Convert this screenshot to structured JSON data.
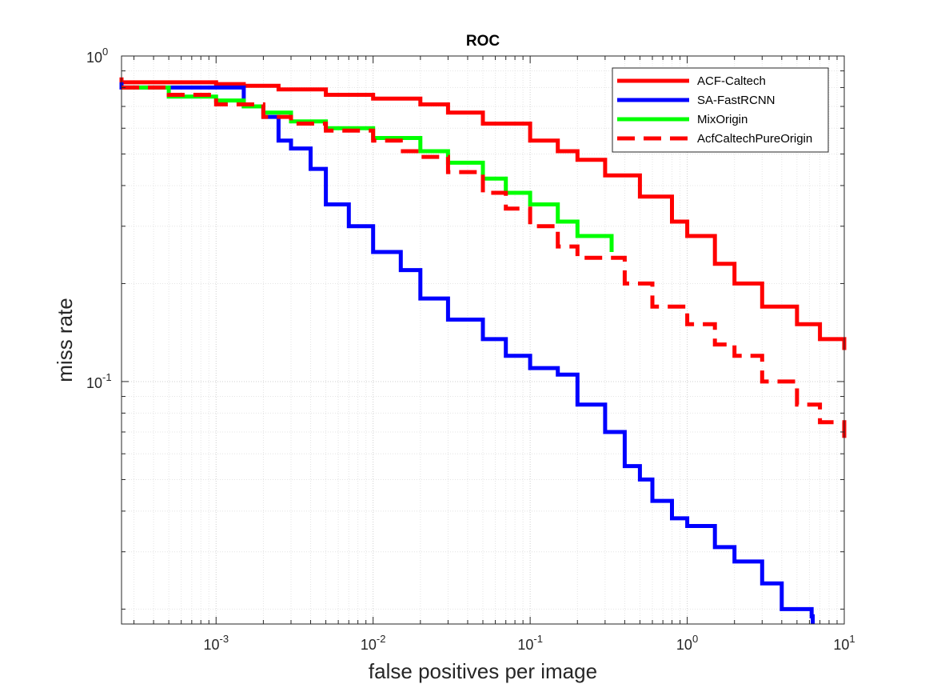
{
  "chart_data": {
    "type": "line",
    "title": "ROC",
    "xlabel": "false positives per image",
    "ylabel": "miss rate",
    "x_scale": "log",
    "y_scale": "log",
    "xlim": [
      0.00025,
      10
    ],
    "ylim": [
      0.018,
      1
    ],
    "x_ticks": [
      {
        "base": "10",
        "exp": "-3",
        "value": 0.001
      },
      {
        "base": "10",
        "exp": "-2",
        "value": 0.01
      },
      {
        "base": "10",
        "exp": "-1",
        "value": 0.1
      },
      {
        "base": "10",
        "exp": "0",
        "value": 1
      },
      {
        "base": "10",
        "exp": "1",
        "value": 10
      }
    ],
    "y_ticks": [
      {
        "base": "10",
        "exp": "-1",
        "value": 0.1
      },
      {
        "base": "10",
        "exp": "0",
        "value": 1
      }
    ],
    "grid": true,
    "minor_grid": true,
    "legend_position": "top-right",
    "series": [
      {
        "name": "ACF-Caltech",
        "color": "#ff0000",
        "dash": "solid",
        "points": [
          [
            0.00025,
            0.86
          ],
          [
            0.00025,
            0.83
          ],
          [
            0.001,
            0.82
          ],
          [
            0.0015,
            0.81
          ],
          [
            0.0025,
            0.79
          ],
          [
            0.005,
            0.76
          ],
          [
            0.01,
            0.74
          ],
          [
            0.02,
            0.71
          ],
          [
            0.03,
            0.67
          ],
          [
            0.05,
            0.62
          ],
          [
            0.1,
            0.55
          ],
          [
            0.15,
            0.51
          ],
          [
            0.2,
            0.48
          ],
          [
            0.3,
            0.43
          ],
          [
            0.5,
            0.37
          ],
          [
            0.8,
            0.31
          ],
          [
            1.0,
            0.28
          ],
          [
            1.5,
            0.23
          ],
          [
            2.0,
            0.2
          ],
          [
            3.0,
            0.17
          ],
          [
            5.0,
            0.15
          ],
          [
            7.0,
            0.135
          ],
          [
            10,
            0.125
          ]
        ]
      },
      {
        "name": "SA-FastRCNN",
        "color": "#0000ff",
        "dash": "solid",
        "points": [
          [
            0.00025,
            0.83
          ],
          [
            0.00025,
            0.8
          ],
          [
            0.0015,
            0.8
          ],
          [
            0.0015,
            0.7
          ],
          [
            0.002,
            0.7
          ],
          [
            0.002,
            0.65
          ],
          [
            0.0025,
            0.65
          ],
          [
            0.0025,
            0.55
          ],
          [
            0.003,
            0.52
          ],
          [
            0.004,
            0.45
          ],
          [
            0.005,
            0.35
          ],
          [
            0.007,
            0.3
          ],
          [
            0.01,
            0.25
          ],
          [
            0.015,
            0.22
          ],
          [
            0.02,
            0.18
          ],
          [
            0.03,
            0.155
          ],
          [
            0.05,
            0.135
          ],
          [
            0.07,
            0.12
          ],
          [
            0.1,
            0.11
          ],
          [
            0.15,
            0.105
          ],
          [
            0.2,
            0.085
          ],
          [
            0.3,
            0.07
          ],
          [
            0.4,
            0.055
          ],
          [
            0.5,
            0.05
          ],
          [
            0.6,
            0.043
          ],
          [
            0.8,
            0.038
          ],
          [
            1.0,
            0.036
          ],
          [
            1.5,
            0.031
          ],
          [
            2.0,
            0.028
          ],
          [
            3.0,
            0.024
          ],
          [
            4.0,
            0.02
          ],
          [
            6.2,
            0.019
          ],
          [
            6.3,
            0.018
          ]
        ]
      },
      {
        "name": "MixOrigin",
        "color": "#00ff00",
        "dash": "solid",
        "points": [
          [
            0.00025,
            0.8
          ],
          [
            0.0005,
            0.8
          ],
          [
            0.0005,
            0.75
          ],
          [
            0.001,
            0.73
          ],
          [
            0.0015,
            0.7
          ],
          [
            0.002,
            0.67
          ],
          [
            0.003,
            0.63
          ],
          [
            0.005,
            0.6
          ],
          [
            0.01,
            0.56
          ],
          [
            0.02,
            0.51
          ],
          [
            0.03,
            0.47
          ],
          [
            0.05,
            0.42
          ],
          [
            0.07,
            0.38
          ],
          [
            0.1,
            0.35
          ],
          [
            0.15,
            0.31
          ],
          [
            0.2,
            0.28
          ],
          [
            0.33,
            0.25
          ]
        ]
      },
      {
        "name": "AcfCaltechPureOrigin",
        "color": "#ff0000",
        "dash": "dashed",
        "points": [
          [
            0.00025,
            0.8
          ],
          [
            0.0005,
            0.76
          ],
          [
            0.001,
            0.71
          ],
          [
            0.002,
            0.65
          ],
          [
            0.003,
            0.62
          ],
          [
            0.005,
            0.59
          ],
          [
            0.01,
            0.55
          ],
          [
            0.015,
            0.51
          ],
          [
            0.02,
            0.49
          ],
          [
            0.03,
            0.44
          ],
          [
            0.05,
            0.38
          ],
          [
            0.07,
            0.34
          ],
          [
            0.1,
            0.3
          ],
          [
            0.15,
            0.26
          ],
          [
            0.2,
            0.24
          ],
          [
            0.4,
            0.2
          ],
          [
            0.6,
            0.17
          ],
          [
            1.0,
            0.15
          ],
          [
            1.5,
            0.13
          ],
          [
            2.0,
            0.12
          ],
          [
            3.0,
            0.1
          ],
          [
            5.0,
            0.085
          ],
          [
            7.0,
            0.075
          ],
          [
            10,
            0.067
          ]
        ]
      }
    ]
  }
}
